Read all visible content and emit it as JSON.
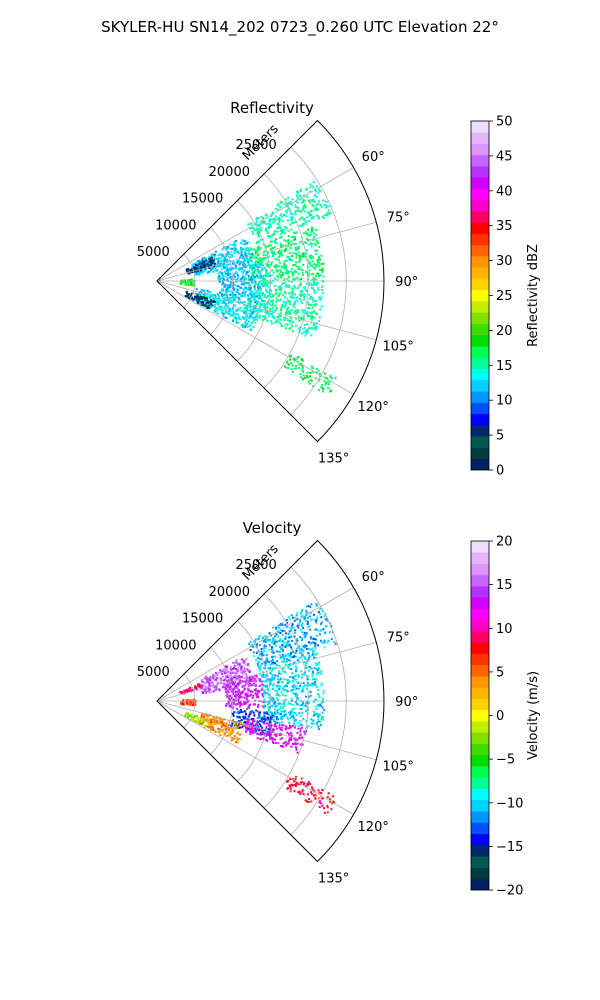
{
  "figure_title": "SKYLER-HU  SN14_202  0723_0.260 UTC Elevation 22°",
  "chart_data": [
    {
      "type": "polar-sector-radar",
      "title": "Reflectivity",
      "radial_axis_label": "Meters",
      "radial_ticks": [
        5000,
        10000,
        15000,
        20000,
        25000
      ],
      "radial_tick_labels": [
        "5000",
        "10000",
        "15000",
        "20000",
        "25000"
      ],
      "radial_range": [
        0,
        30000
      ],
      "azimuth_range_deg": [
        45,
        135
      ],
      "azimuth_ticks_deg": [
        60,
        75,
        90,
        105,
        120,
        135
      ],
      "azimuth_tick_labels": [
        "60°",
        "75°",
        "90°",
        "105°",
        "120°",
        "135°"
      ],
      "grid": true,
      "colorbar": {
        "label": "Reflectivity dBZ",
        "range": [
          0,
          50
        ],
        "ticks": [
          0,
          5,
          10,
          15,
          20,
          25,
          30,
          35,
          40,
          45,
          50
        ],
        "tick_labels": [
          "0",
          "5",
          "10",
          "15",
          "20",
          "25",
          "30",
          "35",
          "40",
          "45",
          "50"
        ],
        "colors": [
          "#002060",
          "#003c3c",
          "#005a50",
          "#00286e",
          "#0000ff",
          "#0050ff",
          "#0096ff",
          "#00d2ff",
          "#00ffff",
          "#00ff96",
          "#00ff50",
          "#00dc00",
          "#40dc00",
          "#80e000",
          "#c0f000",
          "#ffff00",
          "#ffd200",
          "#ffb400",
          "#ff9600",
          "#ff6400",
          "#ff3200",
          "#ff0000",
          "#ff0064",
          "#ff00c8",
          "#ff00ff",
          "#d200ff",
          "#b432ff",
          "#c864ff",
          "#dc96ff",
          "#e6b4ff",
          "#f0dcff"
        ]
      },
      "echo_regions": [
        {
          "az": [
            57,
            69
          ],
          "r": [
            14000,
            25000
          ],
          "value": 15
        },
        {
          "az": [
            70,
            90
          ],
          "r": [
            12000,
            22000
          ],
          "value": 16
        },
        {
          "az": [
            90,
            110
          ],
          "r": [
            12000,
            22000
          ],
          "value": 15
        },
        {
          "az": [
            62,
            80
          ],
          "r": [
            5000,
            13000
          ],
          "value": 12
        },
        {
          "az": [
            100,
            118
          ],
          "r": [
            5000,
            14000
          ],
          "value": 13
        },
        {
          "az": [
            80,
            100
          ],
          "r": [
            8000,
            14000
          ],
          "value": 12
        },
        {
          "az": [
            65,
            75
          ],
          "r": [
            4000,
            8000
          ],
          "value": 5
        },
        {
          "az": [
            108,
            118
          ],
          "r": [
            4000,
            8000
          ],
          "value": 5
        },
        {
          "az": [
            118,
            124
          ],
          "r": [
            20000,
            27000
          ],
          "value": 17
        },
        {
          "az": [
            86,
            96
          ],
          "r": [
            3000,
            5000
          ],
          "value": 18
        }
      ]
    },
    {
      "type": "polar-sector-radar",
      "title": "Velocity",
      "radial_axis_label": "Meters",
      "radial_ticks": [
        5000,
        10000,
        15000,
        20000,
        25000
      ],
      "radial_tick_labels": [
        "5000",
        "10000",
        "15000",
        "20000",
        "25000"
      ],
      "radial_range": [
        0,
        30000
      ],
      "azimuth_range_deg": [
        45,
        135
      ],
      "azimuth_ticks_deg": [
        60,
        75,
        90,
        105,
        120,
        135
      ],
      "azimuth_tick_labels": [
        "60°",
        "75°",
        "90°",
        "105°",
        "120°",
        "135°"
      ],
      "grid": true,
      "colorbar": {
        "label": "Velocity (m/s)",
        "range": [
          -20,
          20
        ],
        "ticks": [
          -20,
          -15,
          -10,
          -5,
          0,
          5,
          10,
          15,
          20
        ],
        "tick_labels": [
          "−20",
          "−15",
          "−10",
          "−5",
          "0",
          "5",
          "10",
          "15",
          "20"
        ],
        "colors": [
          "#002060",
          "#003c3c",
          "#005a50",
          "#00286e",
          "#0000ff",
          "#0050ff",
          "#0096ff",
          "#00d2ff",
          "#00ffff",
          "#00ff96",
          "#00ff50",
          "#00dc00",
          "#40dc00",
          "#80e000",
          "#c0f000",
          "#ffff00",
          "#ffd200",
          "#ffb400",
          "#ff9600",
          "#ff6400",
          "#ff3200",
          "#ff0000",
          "#ff0064",
          "#ff00c8",
          "#ff00ff",
          "#d200ff",
          "#b432ff",
          "#c864ff",
          "#dc96ff",
          "#e6b4ff",
          "#f0dcff"
        ]
      },
      "echo_regions": [
        {
          "az": [
            57,
            72
          ],
          "r": [
            14000,
            25000
          ],
          "value": -11
        },
        {
          "az": [
            72,
            100
          ],
          "r": [
            14000,
            22000
          ],
          "value": -10
        },
        {
          "az": [
            62,
            80
          ],
          "r": [
            6000,
            13000
          ],
          "value": 15
        },
        {
          "az": [
            75,
            95
          ],
          "r": [
            9000,
            14000
          ],
          "value": 14
        },
        {
          "az": [
            95,
            108
          ],
          "r": [
            10000,
            16000
          ],
          "value": -13
        },
        {
          "az": [
            100,
            110
          ],
          "r": [
            12000,
            20000
          ],
          "value": 12
        },
        {
          "az": [
            104,
            118
          ],
          "r": [
            6000,
            12000
          ],
          "value": 4
        },
        {
          "az": [
            110,
            118
          ],
          "r": [
            4000,
            7000
          ],
          "value": -2
        },
        {
          "az": [
            66,
            72
          ],
          "r": [
            3000,
            6000
          ],
          "value": 9
        },
        {
          "az": [
            118,
            124
          ],
          "r": [
            20000,
            27000
          ],
          "value": 8
        },
        {
          "az": [
            86,
            96
          ],
          "r": [
            3000,
            5000
          ],
          "value": 6
        }
      ]
    }
  ]
}
